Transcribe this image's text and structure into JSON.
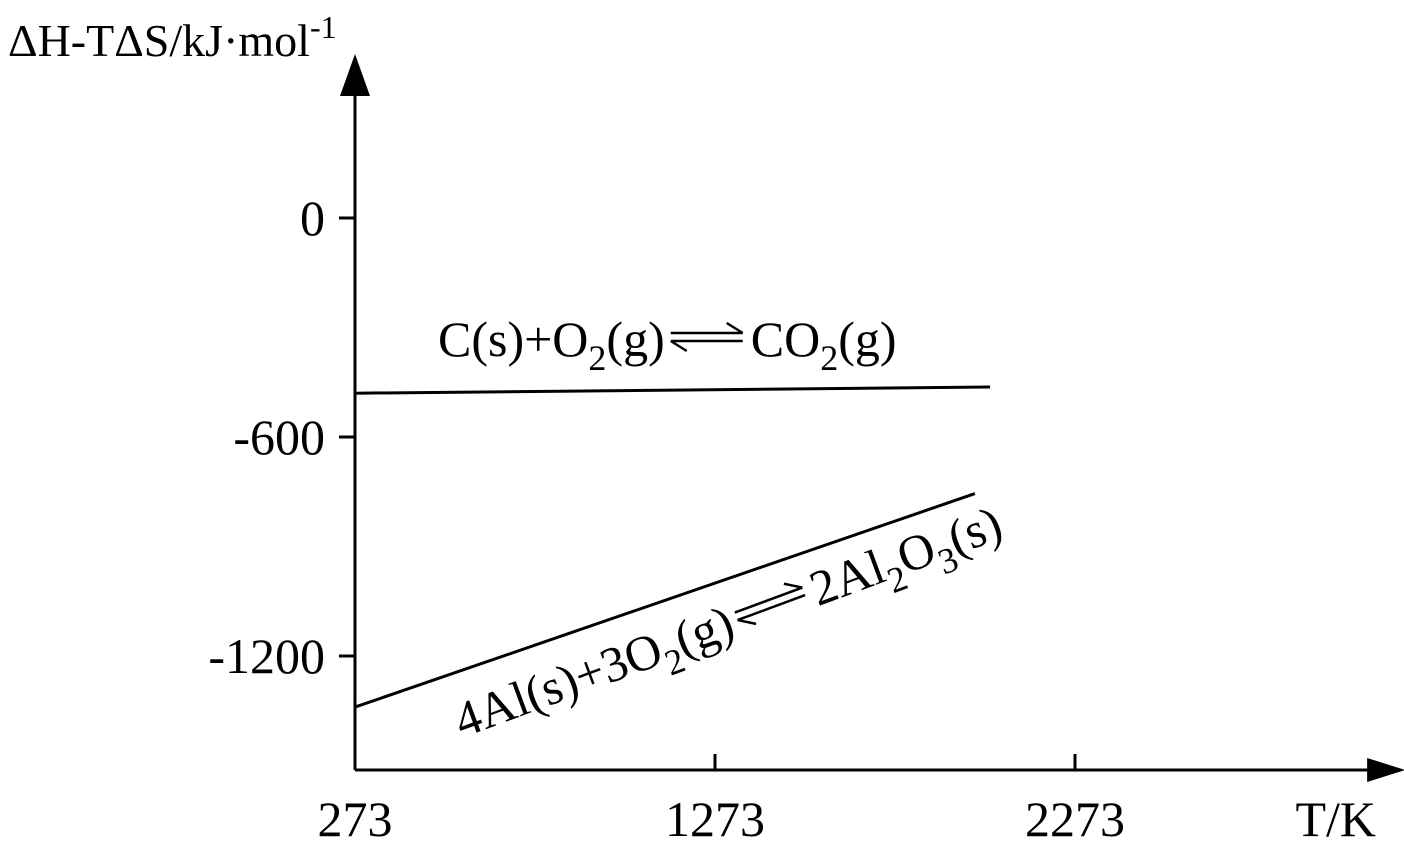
{
  "chart_data": {
    "type": "line",
    "y_axis": {
      "label": "ΔH-TΔS/kJ·mol",
      "label_sup": "-1",
      "ticks": [
        0,
        -600,
        -1200
      ],
      "tick_labels": [
        "0",
        "-600",
        "-1200"
      ]
    },
    "x_axis": {
      "label": "T/K",
      "ticks": [
        273,
        1273,
        2273
      ],
      "tick_labels": [
        "273",
        "1273",
        "2273"
      ]
    },
    "series": [
      {
        "equation": [
          "C(s)+O",
          "2",
          "(g)",
          "CO",
          "2",
          "(g)"
        ],
        "x": [
          273,
          2037
        ],
        "y": [
          -480,
          -463
        ]
      },
      {
        "equation": [
          "4Al(s)+3O",
          "2",
          "(g)",
          "2Al",
          "2",
          "O",
          "3",
          "(s)"
        ],
        "x": [
          273,
          1995
        ],
        "y": [
          -1340,
          -755
        ]
      }
    ],
    "ylim": [
      -1500,
      400
    ],
    "xlim": [
      273,
      3090
    ]
  }
}
